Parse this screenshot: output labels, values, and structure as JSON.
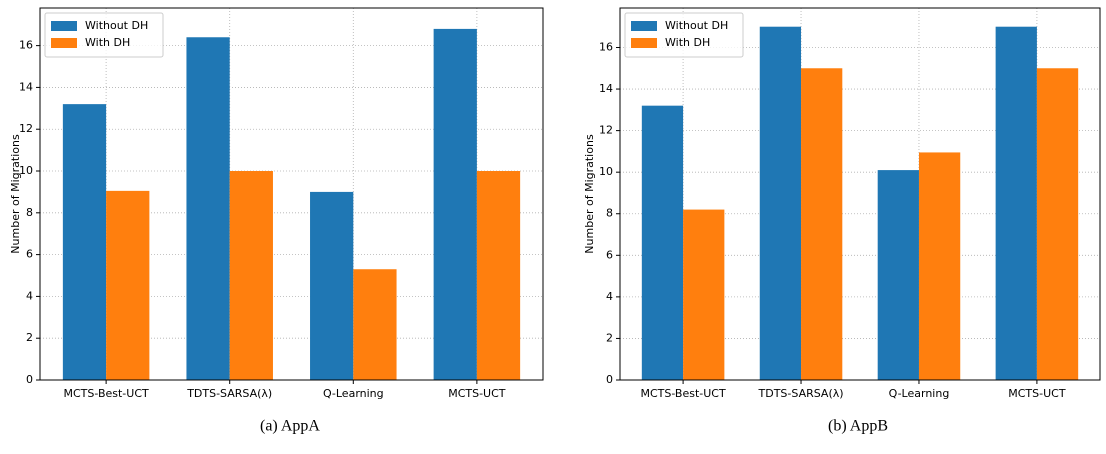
{
  "chart_data": [
    {
      "type": "bar",
      "caption": "(a)  AppA",
      "ylabel": "Number of Migrations",
      "categories": [
        "MCTS-Best-UCT",
        "TDTS-SARSA(λ)",
        "Q-Learning",
        "MCTS-UCT"
      ],
      "series": [
        {
          "name": "Without DH",
          "color": "#1f77b4",
          "values": [
            13.2,
            16.4,
            9.0,
            16.8
          ]
        },
        {
          "name": "With DH",
          "color": "#ff7f0e",
          "values": [
            9.05,
            10.0,
            5.3,
            10.0
          ]
        }
      ],
      "ylim": [
        0,
        17.8
      ],
      "yticks": [
        0,
        2,
        4,
        6,
        8,
        10,
        12,
        14,
        16
      ],
      "grid": true,
      "legend": "upper-left"
    },
    {
      "type": "bar",
      "caption": "(b)  AppB",
      "ylabel": "Number of Migrations",
      "categories": [
        "MCTS-Best-UCT",
        "TDTS-SARSA(λ)",
        "Q-Learning",
        "MCTS-UCT"
      ],
      "series": [
        {
          "name": "Without DH",
          "color": "#1f77b4",
          "values": [
            13.2,
            17.0,
            10.1,
            17.0
          ]
        },
        {
          "name": "With DH",
          "color": "#ff7f0e",
          "values": [
            8.2,
            15.0,
            10.95,
            15.0
          ]
        }
      ],
      "ylim": [
        0,
        17.9
      ],
      "yticks": [
        0,
        2,
        4,
        6,
        8,
        10,
        12,
        14,
        16
      ],
      "grid": true,
      "legend": "upper-left"
    }
  ]
}
